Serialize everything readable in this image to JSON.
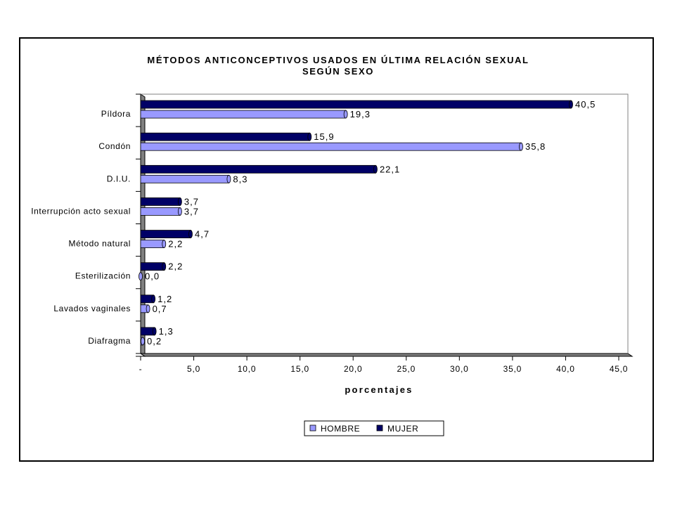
{
  "chart_data": {
    "type": "bar",
    "orientation": "horizontal",
    "title": [
      "MÉTODOS ANTICONCEPTIVOS USADOS EN ÚLTIMA RELACIÓN SEXUAL",
      "SEGÚN SEXO"
    ],
    "xlabel": "porcentajes",
    "ylabel": "",
    "xlim": [
      0,
      45
    ],
    "x_ticks": [
      "-",
      "5,0",
      "10,0",
      "15,0",
      "20,0",
      "25,0",
      "30,0",
      "35,0",
      "40,0",
      "45,0"
    ],
    "grid": false,
    "legend_position": "bottom",
    "categories": [
      "Píldora",
      "Condón",
      "D.I.U.",
      "Interrupción acto sexual",
      "Método natural",
      "Esterilización",
      "Lavados vaginales",
      "Diafragma"
    ],
    "series": [
      {
        "name": "MUJER",
        "color": "#000066",
        "values": [
          40.5,
          15.9,
          22.1,
          3.7,
          4.7,
          2.2,
          1.2,
          1.3
        ],
        "labels": [
          "40,5",
          "15,9",
          "22,1",
          "3,7",
          "4,7",
          "2,2",
          "1,2",
          "1,3"
        ]
      },
      {
        "name": "HOMBRE",
        "color": "#9999ff",
        "values": [
          19.3,
          35.8,
          8.3,
          3.7,
          2.2,
          0.0,
          0.7,
          0.2
        ],
        "labels": [
          "19,3",
          "35,8",
          "8,3",
          "3,7",
          "2,2",
          "0,0",
          "0,7",
          "0,2"
        ]
      }
    ],
    "legend_order": [
      "HOMBRE",
      "MUJER"
    ]
  }
}
